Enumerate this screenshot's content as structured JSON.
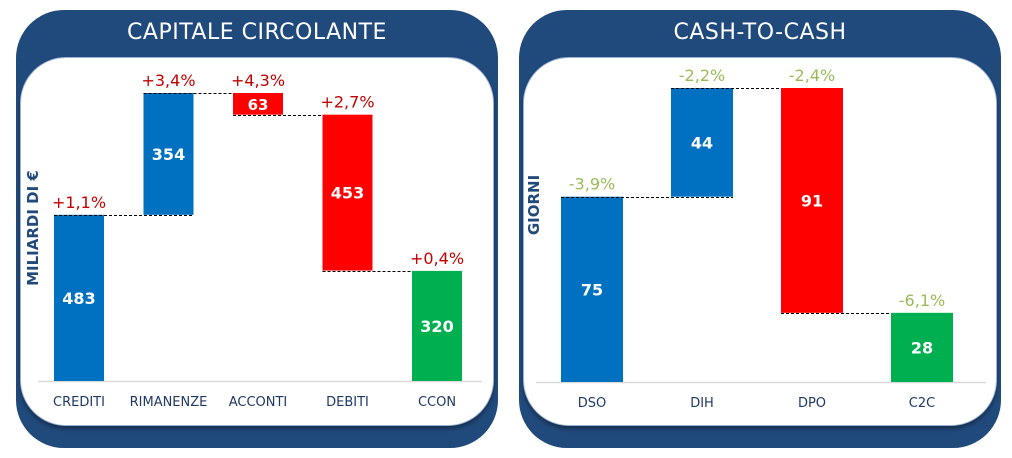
{
  "colors": {
    "header": "#214a7c",
    "increase": "#0070c0",
    "decrease": "#ff0000",
    "total": "#00b050",
    "pct_left": "#c00000",
    "pct_right": "#9bbb59",
    "axis_text": "#1f3864"
  },
  "chart_data": [
    {
      "type": "bar",
      "subtype": "waterfall",
      "title": "CAPITALE CIRCOLANTE",
      "ylabel": "MILIARDI DI €",
      "categories": [
        "CREDITI",
        "RIMANENZE",
        "ACCONTI",
        "DEBITI",
        "CCON"
      ],
      "values": [
        483,
        354,
        63,
        453,
        320
      ],
      "kinds": [
        "increase",
        "increase",
        "decrease",
        "decrease",
        "total"
      ],
      "pct_labels": [
        "+1,1%",
        "+3,4%",
        "+4,3%",
        "+2,7%",
        "+0,4%"
      ],
      "ylim": [
        0,
        900
      ],
      "grid": false
    },
    {
      "type": "bar",
      "subtype": "waterfall",
      "title": "CASH-TO-CASH",
      "ylabel": "GIORNI",
      "categories": [
        "DSO",
        "DIH",
        "DPO",
        "C2C"
      ],
      "values": [
        75,
        44,
        91,
        28
      ],
      "kinds": [
        "increase",
        "increase",
        "decrease",
        "total"
      ],
      "pct_labels": [
        "-3,9%",
        "-2,2%",
        "-2,4%",
        "-6,1%"
      ],
      "ylim": [
        0,
        130
      ],
      "grid": false
    }
  ]
}
